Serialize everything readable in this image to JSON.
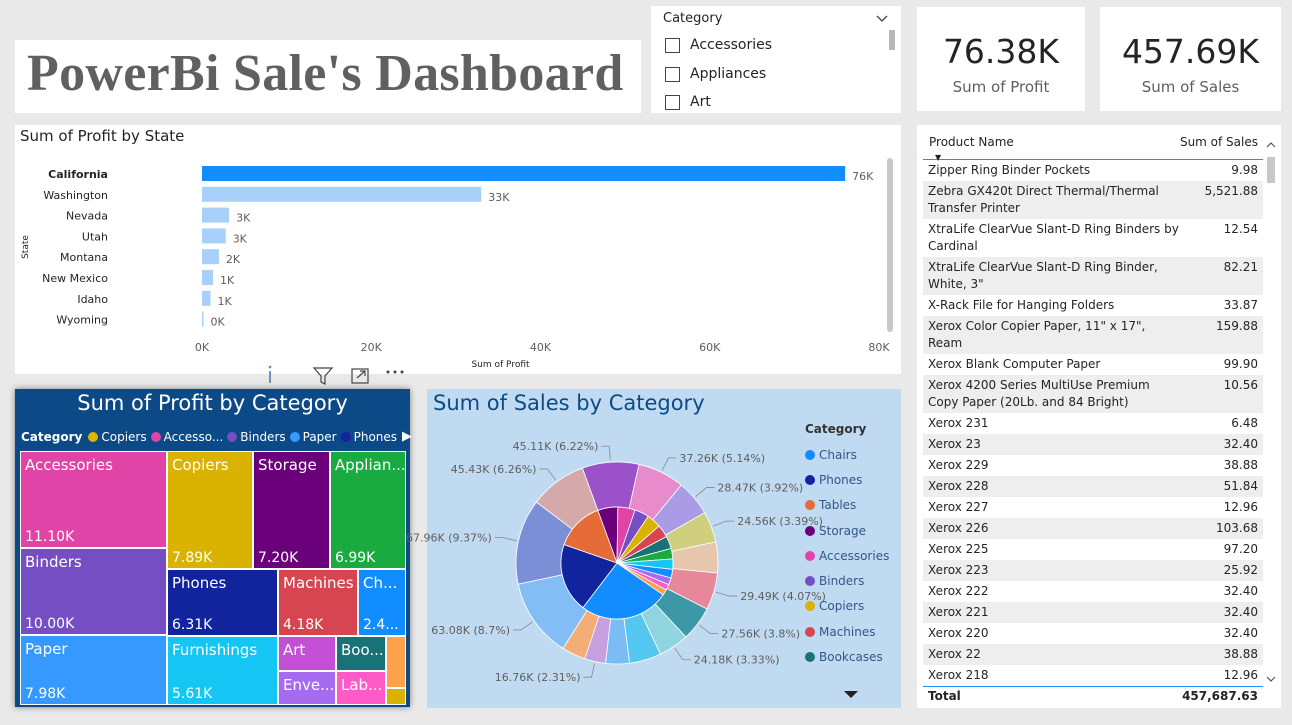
{
  "title": "PowerBi Sale's Dashboard",
  "slicer": {
    "header": "Category",
    "options": [
      "Accessories",
      "Appliances",
      "Art"
    ]
  },
  "cards": {
    "profit": {
      "value": "76.38K",
      "label": "Sum of Profit"
    },
    "sales": {
      "value": "457.69K",
      "label": "Sum of Sales"
    }
  },
  "bar_chart_title": "Sum of Profit by State",
  "table": {
    "col_product": "Product Name",
    "col_sales": "Sum of Sales",
    "rows": [
      {
        "name": "Zipper Ring Binder Pockets",
        "sales": "9.98"
      },
      {
        "name": "Zebra GX420t Direct Thermal/Thermal Transfer Printer",
        "sales": "5,521.88"
      },
      {
        "name": "XtraLife ClearVue Slant-D Ring Binders by Cardinal",
        "sales": "12.54"
      },
      {
        "name": "XtraLife ClearVue Slant-D Ring Binder, White, 3\"",
        "sales": "82.21"
      },
      {
        "name": "X-Rack File for Hanging Folders",
        "sales": "33.87"
      },
      {
        "name": "Xerox Color Copier Paper, 11\" x 17\", Ream",
        "sales": "159.88"
      },
      {
        "name": "Xerox Blank Computer Paper",
        "sales": "99.90"
      },
      {
        "name": "Xerox 4200 Series MultiUse Premium Copy Paper (20Lb. and 84 Bright)",
        "sales": "10.56"
      },
      {
        "name": "Xerox 231",
        "sales": "6.48"
      },
      {
        "name": "Xerox 23",
        "sales": "32.40"
      },
      {
        "name": "Xerox 229",
        "sales": "38.88"
      },
      {
        "name": "Xerox 228",
        "sales": "51.84"
      },
      {
        "name": "Xerox 227",
        "sales": "12.96"
      },
      {
        "name": "Xerox 226",
        "sales": "103.68"
      },
      {
        "name": "Xerox 225",
        "sales": "97.20"
      },
      {
        "name": "Xerox 223",
        "sales": "25.92"
      },
      {
        "name": "Xerox 222",
        "sales": "32.40"
      },
      {
        "name": "Xerox 221",
        "sales": "32.40"
      },
      {
        "name": "Xerox 220",
        "sales": "32.40"
      },
      {
        "name": "Xerox 22",
        "sales": "38.88"
      },
      {
        "name": "Xerox 218",
        "sales": "12.96"
      }
    ],
    "total_label": "Total",
    "total_value": "457,687.63"
  },
  "treemap": {
    "title": "Sum of Profit by Category",
    "legend_title": "Category",
    "legend": [
      {
        "name": "Copiers",
        "color": "#e0b400"
      },
      {
        "name": "Accesso...",
        "color": "#e044a7"
      },
      {
        "name": "Binders",
        "color": "#744ec2"
      },
      {
        "name": "Paper",
        "color": "#3599ff"
      },
      {
        "name": "Phones",
        "color": "#12239e"
      }
    ]
  },
  "pie_legend": {
    "title": "Category",
    "items": [
      {
        "name": "Chairs",
        "color": "#118dff"
      },
      {
        "name": "Phones",
        "color": "#12239e"
      },
      {
        "name": "Tables",
        "color": "#e66c37"
      },
      {
        "name": "Storage",
        "color": "#6b007b"
      },
      {
        "name": "Accessories",
        "color": "#e044a7"
      },
      {
        "name": "Binders",
        "color": "#744ec2"
      },
      {
        "name": "Copiers",
        "color": "#d9b300"
      },
      {
        "name": "Machines",
        "color": "#d64550"
      },
      {
        "name": "Bookcases",
        "color": "#197278"
      }
    ]
  },
  "chart_data": [
    {
      "type": "bar",
      "orientation": "horizontal",
      "title": "Sum of Profit by State",
      "xlabel": "Sum of Profit",
      "ylabel": "State",
      "categories": [
        "California",
        "Washington",
        "Nevada",
        "Utah",
        "Montana",
        "New Mexico",
        "Idaho",
        "Wyoming"
      ],
      "values": [
        76000,
        33000,
        3200,
        2800,
        2000,
        1300,
        1000,
        100
      ],
      "data_labels": [
        "76K",
        "33K",
        "3K",
        "3K",
        "2K",
        "1K",
        "1K",
        "0K"
      ],
      "xlim": [
        0,
        80000
      ],
      "x_ticks": [
        "0K",
        "20K",
        "40K",
        "60K",
        "80K"
      ],
      "colors": {
        "highlight": "#118dff",
        "other": "#a7d1fb"
      }
    },
    {
      "type": "treemap",
      "title": "Sum of Profit by Category",
      "items": [
        {
          "name": "Accessories",
          "label": "11.10K",
          "color": "#e044a7"
        },
        {
          "name": "Binders",
          "label": "10.00K",
          "color": "#744ec2"
        },
        {
          "name": "Paper",
          "label": "7.98K",
          "color": "#3599ff"
        },
        {
          "name": "Copiers",
          "label": "7.89K",
          "color": "#d9b300"
        },
        {
          "name": "Storage",
          "label": "7.20K",
          "color": "#6b007b"
        },
        {
          "name": "Applian...",
          "label": "6.99K",
          "color": "#1aab40"
        },
        {
          "name": "Phones",
          "label": "6.31K",
          "color": "#12239e"
        },
        {
          "name": "Machines",
          "label": "4.18K",
          "color": "#d64550"
        },
        {
          "name": "Ch...",
          "label": "2.4...",
          "color": "#118dff"
        },
        {
          "name": "Furnishings",
          "label": "5.61K",
          "color": "#15c6f4"
        },
        {
          "name": "Art",
          "label": "",
          "color": "#c34fd4"
        },
        {
          "name": "Boo...",
          "label": "",
          "color": "#197278"
        },
        {
          "name": "Enve...",
          "label": "",
          "color": "#a66cf0"
        },
        {
          "name": "Lab...",
          "label": "",
          "color": "#ff5bc8"
        },
        {
          "name": "",
          "label": "",
          "color": "#ffa14a"
        },
        {
          "name": "",
          "label": "",
          "color": "#d9b300"
        }
      ]
    },
    {
      "type": "pie",
      "title": "Sum of Sales by Category",
      "legend_title": "Category",
      "slices": [
        {
          "label": "45.11K (6.22%)",
          "value": 6.22,
          "color": "#9b52c9"
        },
        {
          "label": "37.26K (5.14%)",
          "value": 5.14,
          "color": "#e78bcc"
        },
        {
          "label": "28.47K (3.92%)",
          "value": 3.92,
          "color": "#a99be6"
        },
        {
          "label": "24.56K (3.39%)",
          "value": 3.39,
          "color": "#cfcf7e"
        },
        {
          "label": "",
          "value": 3.4,
          "color": "#e6c7ae"
        },
        {
          "label": "29.49K (4.07%)",
          "value": 4.07,
          "color": "#e7879a"
        },
        {
          "label": "27.56K (3.8%)",
          "value": 3.8,
          "color": "#3c98a6"
        },
        {
          "label": "24.18K (3.33%)",
          "value": 3.33,
          "color": "#8fd4df"
        },
        {
          "label": "",
          "value": 3.5,
          "color": "#54c7f0"
        },
        {
          "label": "",
          "value": 2.6,
          "color": "#7cbcf5"
        },
        {
          "label": "16.76K (2.31%)",
          "value": 2.31,
          "color": "#c7a0e0"
        },
        {
          "label": "",
          "value": 2.6,
          "color": "#f4ad75"
        },
        {
          "label": "63.08K (8.7%)",
          "value": 8.7,
          "color": "#82bdf6"
        },
        {
          "label": "67.96K (9.37%)",
          "value": 9.37,
          "color": "#7b8fd6"
        },
        {
          "label": "45.43K (6.26%)",
          "value": 6.26,
          "color": "#d5a9a9"
        }
      ]
    }
  ]
}
